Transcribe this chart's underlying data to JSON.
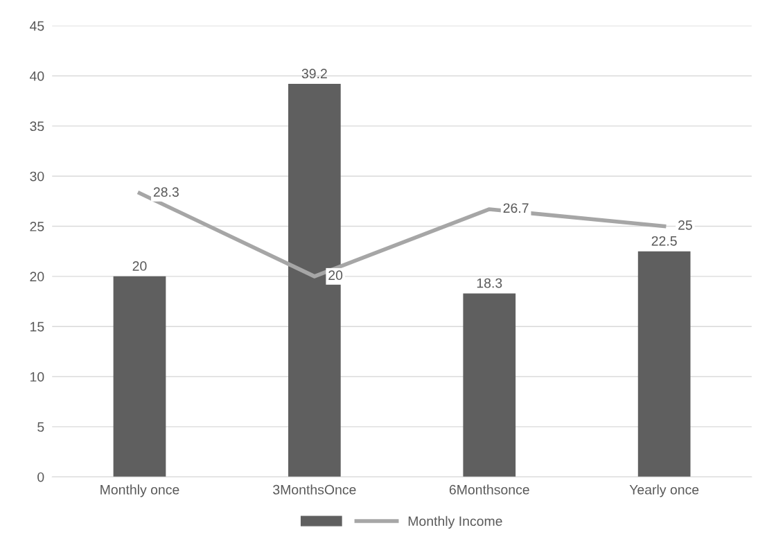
{
  "chart_data": {
    "type": "bar",
    "categories": [
      "Monthly once",
      "3MonthsOnce",
      "6Monthsonce",
      "Yearly once"
    ],
    "series": [
      {
        "type": "bar",
        "color": "#5f5f5f",
        "values": [
          20,
          39.2,
          18.3,
          22.5
        ]
      },
      {
        "type": "line",
        "name": "Monthly Income",
        "color": "#a6a6a6",
        "values": [
          28.3,
          20,
          26.7,
          25
        ]
      }
    ],
    "ylim": [
      0,
      45
    ],
    "yticks": [
      0,
      5,
      10,
      15,
      20,
      25,
      30,
      35,
      40,
      45
    ],
    "grid": "y",
    "legend": "bottom",
    "data_labels": true,
    "marker": "none",
    "line_style": "solid"
  }
}
